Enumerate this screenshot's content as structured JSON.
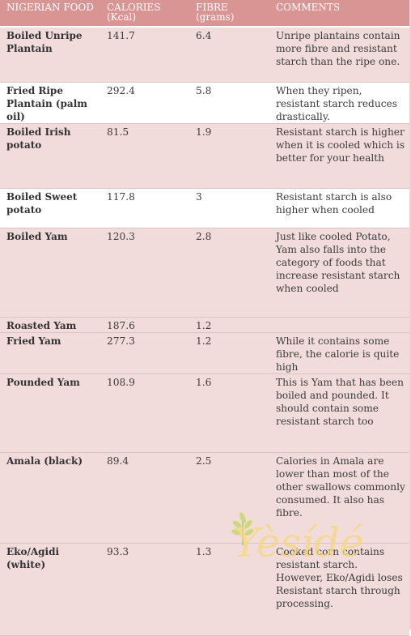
{
  "headers": {
    "food": "NIGERIAN FOOD",
    "calories": "CALORIES (Kcal)",
    "fibre": "FIBRE (grams)",
    "comments": "COMMENTS"
  },
  "rows": [
    {
      "food": "Boiled Unripe Plantain",
      "calories": "141.7",
      "fibre": "6.4",
      "comment": "Unripe plantains contain more fibre and resistant starch than the ripe one."
    },
    {
      "food": "Fried Ripe Plantain (palm oil)",
      "calories": "292.4",
      "fibre": "5.8",
      "comment": "When they ripen, resistant starch reduces drastically."
    },
    {
      "food": "Boiled Irish potato",
      "calories": "81.5",
      "fibre": "1.9",
      "comment": "Resistant starch is higher when it is cooled which is better for your health"
    },
    {
      "food": "Boiled Sweet potato",
      "calories": "117.8",
      "fibre": "3",
      "comment": "Resistant starch is also higher when cooled"
    },
    {
      "food": "Boiled Yam",
      "calories": "120.3",
      "fibre": "2.8",
      "comment": "Just like cooled Potato, Yam also falls into the category of foods that increase resistant starch when cooled"
    },
    {
      "food": "Roasted Yam",
      "calories": "187.6",
      "fibre": "1.2",
      "comment": ""
    },
    {
      "food": "Fried Yam",
      "calories": "277.3",
      "fibre": "1.2",
      "comment": "While it contains some fibre, the calorie is quite high"
    },
    {
      "food": "Pounded Yam",
      "calories": "108.9",
      "fibre": "1.6",
      "comment": "This is Yam that has been boiled and pounded. It should contain some resistant starch too"
    },
    {
      "food": "Amala (black)",
      "calories": "89.4",
      "fibre": "2.5",
      "comment": "Calories in Amala are lower than most of the other swallows commonly consumed. It also has fibre."
    },
    {
      "food": "Eko/Agidi (white)",
      "calories": "93.3",
      "fibre": "1.3",
      "comment": "Cooked corn contains resistant starch. However, Eko/Agidi loses Resistant starch through processing."
    }
  ],
  "watermark": {
    "text": "Yèsídé",
    "icon": "leaf-sprig-icon",
    "color": "#f5d97a"
  },
  "colors": {
    "header_bg": "#d99594",
    "row_pink": "#f2dbdb",
    "row_white": "#ffffff"
  }
}
